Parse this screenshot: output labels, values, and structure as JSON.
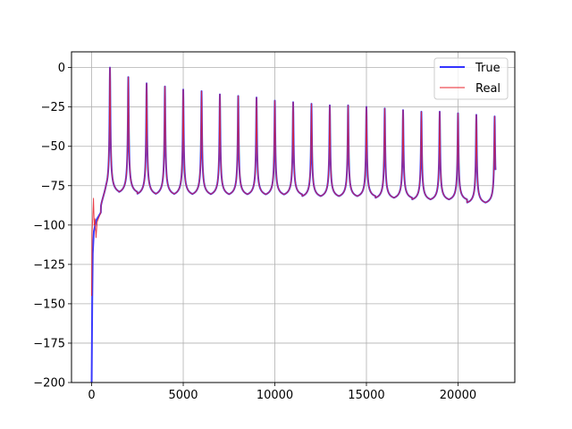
{
  "chart_data": {
    "type": "line",
    "title": "",
    "xlabel": "",
    "ylabel": "",
    "xlim": [
      -1100,
      23100
    ],
    "ylim": [
      -200,
      10
    ],
    "grid": true,
    "legend_position": "top-right",
    "xticks": [
      0,
      5000,
      10000,
      15000,
      20000
    ],
    "xtick_labels": [
      "0",
      "5000",
      "10000",
      "15000",
      "20000"
    ],
    "yticks": [
      0,
      -25,
      -50,
      -75,
      -100,
      -125,
      -150,
      -175,
      -200
    ],
    "ytick_labels": [
      "0",
      "−25",
      "−50",
      "−75",
      "−100",
      "−125",
      "−150",
      "−175",
      "−200"
    ],
    "series": [
      {
        "name": "True",
        "color": "#3333ff",
        "line_width": 2,
        "fundamental_hz": 1000,
        "peak_frequencies": [
          1000,
          2000,
          3000,
          4000,
          5000,
          6000,
          7000,
          8000,
          9000,
          10000,
          11000,
          12000,
          13000,
          14000,
          15000,
          16000,
          17000,
          18000,
          19000,
          20000,
          21000,
          22000
        ],
        "peak_values": [
          0,
          -6,
          -10,
          -12,
          -14,
          -15,
          -17,
          -18,
          -19,
          -21,
          -22,
          -23,
          -24,
          -24,
          -25,
          -26,
          -27,
          -28,
          -28,
          -29,
          -30,
          -31
        ],
        "trough_values": [
          -82,
          -82,
          -83,
          -83,
          -83,
          -83,
          -83,
          -83,
          -83,
          -83,
          -83,
          -84,
          -84,
          -84,
          -84,
          -85,
          -85,
          -86,
          -86,
          -86,
          -88,
          -88
        ],
        "start": {
          "x": [
            0,
            30,
            60,
            120,
            250,
            500
          ],
          "y": [
            -200,
            -150,
            -118,
            -104,
            -97,
            -92
          ]
        },
        "end": {
          "x": 22050,
          "y": -65
        }
      },
      {
        "name": "Real",
        "color": "#e8202a",
        "line_width": 1,
        "fundamental_hz": 1000,
        "peak_frequencies": [
          1000,
          2000,
          3000,
          4000,
          5000,
          6000,
          7000,
          8000,
          9000,
          10000,
          11000,
          12000,
          13000,
          14000,
          15000,
          16000,
          17000,
          18000,
          19000,
          20000,
          21000,
          22000
        ],
        "peak_values": [
          0,
          -6,
          -10,
          -12,
          -14,
          -15,
          -17,
          -18,
          -19,
          -21,
          -22,
          -23,
          -24,
          -24,
          -25,
          -26,
          -27,
          -28,
          -28,
          -29,
          -30,
          -31
        ],
        "trough_values": [
          -82,
          -82,
          -83,
          -83,
          -83,
          -83,
          -83,
          -83,
          -83,
          -83,
          -83,
          -84,
          -84,
          -84,
          -84,
          -85,
          -85,
          -86,
          -86,
          -86,
          -88,
          -88
        ],
        "start": {
          "x": [
            0,
            20,
            60,
            100,
            140,
            180,
            240,
            300,
            500
          ],
          "y": [
            -145,
            -105,
            -95,
            -83,
            -100,
            -96,
            -108,
            -98,
            -92
          ]
        },
        "end": {
          "x": 22050,
          "y": -65
        }
      }
    ]
  }
}
